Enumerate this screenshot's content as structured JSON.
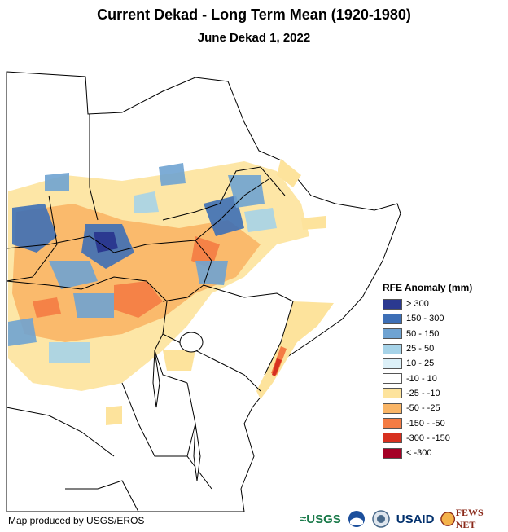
{
  "map": {
    "title": "Current Dekad - Long Term Mean (1920-1980)",
    "subtitle": "June Dekad 1, 2022",
    "credit": "Map produced by USGS/EROS"
  },
  "legend": {
    "title": "RFE Anomaly (mm)",
    "items": [
      {
        "label": "> 300",
        "color": "#2b3990"
      },
      {
        "label": "150 - 300",
        "color": "#3d6fb6"
      },
      {
        "label": "50 - 150",
        "color": "#6fa3d2"
      },
      {
        "label": "25 - 50",
        "color": "#a6d3e8"
      },
      {
        "label": "10 - 25",
        "color": "#dcf0f8"
      },
      {
        "label": "-10 - 10",
        "color": "#ffffff"
      },
      {
        "label": "-25 - -10",
        "color": "#fde39c"
      },
      {
        "label": "-50 - -25",
        "color": "#f9b566"
      },
      {
        "label": "-150 - -50",
        "color": "#f47c44"
      },
      {
        "label": "-300 - -150",
        "color": "#d7301f"
      },
      {
        "label": "< -300",
        "color": "#a50026"
      }
    ]
  },
  "logos": {
    "usgs": "≈USGS",
    "usaid": "USAID",
    "fews": "FEWS NET"
  }
}
